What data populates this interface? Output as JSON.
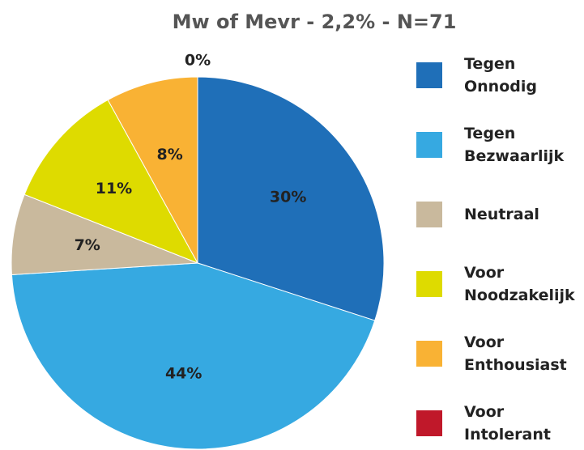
{
  "chart_data": {
    "type": "pie",
    "title": "Mw of Mevr - 2,2% - N=71",
    "categories": [
      "Tegen Onnodig",
      "Tegen Bezwaarlijk",
      "Neutraal",
      "Voor Noodzakelijk",
      "Voor Enthousiast",
      "Voor Intolerant"
    ],
    "values": [
      30,
      44,
      7,
      11,
      8,
      0
    ],
    "value_labels": [
      "30%",
      "44%",
      "7%",
      "11%",
      "8%",
      "0%"
    ],
    "colors": [
      "#1f6fb8",
      "#36a9e1",
      "#c9b99d",
      "#dedb00",
      "#f9b234",
      "#c0182a"
    ],
    "legend": "right"
  }
}
